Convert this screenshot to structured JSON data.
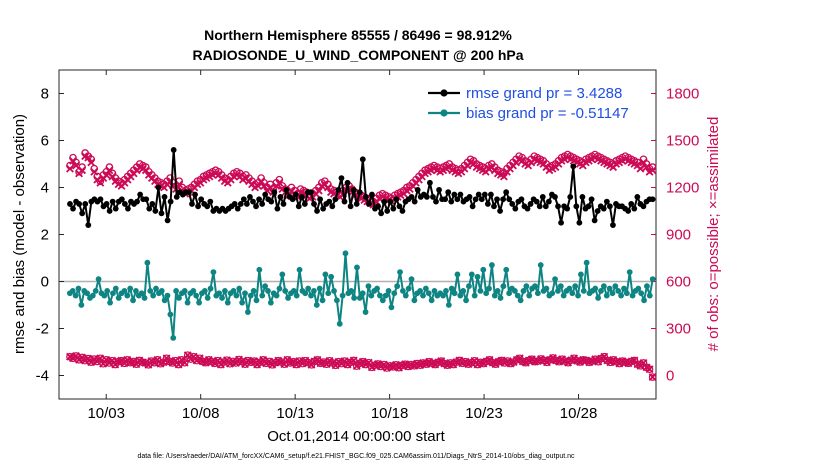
{
  "colors": {
    "rmse": "#000000",
    "bias": "#0e8583",
    "obs": "#cc0a55",
    "legend_text": "#1f4fe0",
    "zero_line": "#b0b0b0"
  },
  "chart_data": {
    "type": "line",
    "title_line1": "Northern Hemisphere 85555 / 86496 = 98.912%",
    "title_line2": "RADIOSONDE_U_WIND_COMPONENT @ 200 hPa",
    "xlabel": "Oct.01,2014 00:00:00 start",
    "ylabel_left": "rmse and bias (model - observation)",
    "ylabel_right": "# of obs: o=possible; ×=assimilated",
    "footer": "data file: /Users/raeder/DAI/ATM_forcXX/CAM6_setup/f.e21.FHIST_BGC.f09_025.CAM6assim.011/Diags_NtrS_2014-10/obs_diag_output.nc",
    "xlim": [
      0.5,
      32.1
    ],
    "ylim_left": [
      -5,
      9
    ],
    "ylim_right": [
      -150,
      1950
    ],
    "ticks_left": [
      -4,
      -2,
      0,
      2,
      4,
      6,
      8
    ],
    "ticks_right": [
      0,
      300,
      600,
      900,
      1200,
      1500,
      1800
    ],
    "ticks_x": [
      {
        "day": 3,
        "label": "10/03"
      },
      {
        "day": 8,
        "label": "10/08"
      },
      {
        "day": 13,
        "label": "10/13"
      },
      {
        "day": 18,
        "label": "10/18"
      },
      {
        "day": 23,
        "label": "10/23"
      },
      {
        "day": 28,
        "label": "10/28"
      }
    ],
    "legend": [
      {
        "key": "rmse",
        "label": "rmse grand pr = 3.4288"
      },
      {
        "key": "bias",
        "label": "bias grand pr = -0.51147"
      }
    ],
    "series_rmse": {
      "name": "rmse",
      "values": [
        3.3,
        3.1,
        3.4,
        3.3,
        2.9,
        3.3,
        2.4,
        3.4,
        3.5,
        3.4,
        3.5,
        3.2,
        3.3,
        3.0,
        3.4,
        3.1,
        3.4,
        3.5,
        3.3,
        3.1,
        3.4,
        3.3,
        3.4,
        3.7,
        3.5,
        3.5,
        3.1,
        3.3,
        3.0,
        4.0,
        2.9,
        3.6,
        2.6,
        3.4,
        5.6,
        3.6,
        3.8,
        3.7,
        3.8,
        3.8,
        3.3,
        3.7,
        3.2,
        3.5,
        3.3,
        3.2,
        3.4,
        3.0,
        3.1,
        3.0,
        3.1,
        3.0,
        3.1,
        3.2,
        3.3,
        3.1,
        3.3,
        3.5,
        3.3,
        3.6,
        3.4,
        3.2,
        3.5,
        3.3,
        3.7,
        3.5,
        3.4,
        3.8,
        3.1,
        3.6,
        3.3,
        3.9,
        3.6,
        3.5,
        3.7,
        3.2,
        3.6,
        3.3,
        3.8,
        3.8,
        3.3,
        3.0,
        3.5,
        3.1,
        3.3,
        3.4,
        3.2,
        3.5,
        3.9,
        4.4,
        3.4,
        4.2,
        3.2,
        3.9,
        3.3,
        3.8,
        5.2,
        3.6,
        3.3,
        3.7,
        3.1,
        3.2,
        2.9,
        3.4,
        3.0,
        3.4,
        3.1,
        3.5,
        3.2,
        3.0,
        3.4,
        3.5,
        3.6,
        3.4,
        3.9,
        3.6,
        3.7,
        3.6,
        4.2,
        3.6,
        3.4,
        3.9,
        3.5,
        3.5,
        3.8,
        3.4,
        3.7,
        3.5,
        3.7,
        3.4,
        3.5,
        3.6,
        3.2,
        3.5,
        3.7,
        3.5,
        3.7,
        3.3,
        3.7,
        3.2,
        3.5,
        3.0,
        3.5,
        3.8,
        3.5,
        3.3,
        3.1,
        3.4,
        3.5,
        3.2,
        3.1,
        3.3,
        3.5,
        3.4,
        3.2,
        3.6,
        3.2,
        3.4,
        3.7,
        3.6,
        3.2,
        2.5,
        3.2,
        3.1,
        3.6,
        4.9,
        3.2,
        2.5,
        3.6,
        3.1,
        3.2,
        3.5,
        2.6,
        3.0,
        3.2,
        3.1,
        3.4,
        3.2,
        2.4,
        3.3,
        3.2,
        3.2,
        3.1,
        3.0,
        3.3,
        3.1,
        3.6,
        3.3,
        3.2,
        3.4,
        3.5,
        3.5
      ]
    },
    "series_bias": {
      "name": "bias",
      "values": [
        -0.5,
        -0.4,
        -0.6,
        -0.3,
        -1.0,
        -0.4,
        -0.5,
        -0.7,
        -0.6,
        -0.4,
        0.1,
        -0.5,
        -0.6,
        -0.4,
        -0.9,
        -0.5,
        -0.3,
        -0.7,
        -0.5,
        -0.4,
        -0.6,
        -0.3,
        -0.8,
        -0.4,
        -0.6,
        -0.5,
        -0.7,
        0.8,
        -0.4,
        -0.6,
        -0.3,
        -0.5,
        -0.4,
        -0.8,
        -0.6,
        -1.4,
        -2.4,
        -0.4,
        -0.7,
        -0.5,
        -0.4,
        -0.9,
        -0.5,
        -0.4,
        -0.6,
        -0.9,
        -0.5,
        -0.4,
        -0.7,
        -0.3,
        0.4,
        -0.6,
        -0.5,
        -0.7,
        -0.4,
        -0.9,
        -0.5,
        -0.4,
        -0.6,
        -0.3,
        -0.9,
        -0.5,
        -1.3,
        -0.6,
        -0.4,
        -0.8,
        0.5,
        -0.6,
        -0.2,
        -0.4,
        -0.9,
        -0.5,
        -0.6,
        -0.3,
        0.3,
        -0.4,
        -0.7,
        -0.5,
        -0.4,
        -0.6,
        0.5,
        -0.4,
        -0.5,
        -0.3,
        -0.6,
        -0.4,
        -1.0,
        -0.3,
        -0.8,
        0.3,
        -0.5,
        0.2,
        -0.4,
        -0.8,
        -1.8,
        -0.6,
        1.2,
        -0.5,
        -0.4,
        -0.7,
        0.6,
        -0.7,
        -0.5,
        -1.3,
        -0.2,
        -0.6,
        -0.4,
        -0.3,
        -0.6,
        -0.8,
        -0.6,
        -0.4,
        -1.1,
        -0.5,
        -0.2,
        0.4,
        -0.4,
        -0.6,
        -0.3,
        0.1,
        -0.8,
        -0.5,
        -0.4,
        -0.6,
        -0.3,
        -0.5,
        -0.8,
        -0.4,
        -0.6,
        -0.5,
        -0.6,
        -0.4,
        -1.0,
        -0.3,
        -0.5,
        0.3,
        -0.6,
        -0.4,
        -0.8,
        -0.2,
        0.3,
        -0.6,
        0.2,
        -0.4,
        0.5,
        -0.5,
        -0.3,
        0.7,
        -0.6,
        -0.4,
        -0.7,
        -0.2,
        0.5,
        -0.5,
        -0.3,
        -0.4,
        -0.6,
        -0.8,
        -0.4,
        -0.2,
        -0.6,
        -0.3,
        -0.2,
        -0.5,
        0.7,
        -0.4,
        -0.3,
        -0.6,
        -0.5,
        0.1,
        -0.4,
        -0.2,
        -0.6,
        -0.4,
        -0.3,
        -0.5,
        -0.2,
        -0.6,
        0.3,
        -0.4,
        0.8,
        -0.5,
        -0.4,
        -0.3,
        -0.7,
        -0.4,
        -0.2,
        -0.6,
        -0.3,
        -0.5,
        -0.2,
        -0.4,
        -0.6,
        -0.3,
        -0.5,
        0.4,
        -0.6,
        -0.4,
        -0.3,
        -0.5,
        -0.8,
        -0.2,
        -0.6,
        0.1
      ]
    },
    "series_obs_possible": {
      "name": "possible",
      "values": [
        1340,
        1390,
        1360,
        1300,
        1330,
        1420,
        1400,
        1380,
        1320,
        1270,
        1240,
        1280,
        1300,
        1330,
        1290,
        1260,
        1240,
        1230,
        1250,
        1270,
        1290,
        1310,
        1330,
        1350,
        1340,
        1330,
        1300,
        1280,
        1260,
        1240,
        1230,
        1220,
        1240,
        1260,
        1230,
        1210,
        1240,
        1200,
        1180,
        1190,
        1200,
        1220,
        1240,
        1250,
        1270,
        1280,
        1290,
        1300,
        1310,
        1300,
        1280,
        1260,
        1250,
        1270,
        1290,
        1300,
        1290,
        1270,
        1280,
        1260,
        1240,
        1220,
        1230,
        1260,
        1230,
        1200,
        1220,
        1190,
        1230,
        1250,
        1210,
        1190,
        1170,
        1200,
        1180,
        1160,
        1190,
        1180,
        1170,
        1150,
        1160,
        1180,
        1200,
        1230,
        1240,
        1220,
        1190,
        1180,
        1170,
        1160,
        1180,
        1200,
        1210,
        1190,
        1170,
        1160,
        1150,
        1140,
        1130,
        1120,
        1110,
        1130,
        1150,
        1160,
        1150,
        1140,
        1130,
        1150,
        1160,
        1170,
        1180,
        1200,
        1210,
        1230,
        1250,
        1270,
        1290,
        1310,
        1320,
        1330,
        1340,
        1330,
        1320,
        1330,
        1340,
        1350,
        1330,
        1320,
        1310,
        1320,
        1340,
        1360,
        1380,
        1370,
        1350,
        1340,
        1330,
        1320,
        1340,
        1350,
        1330,
        1310,
        1300,
        1290,
        1320,
        1340,
        1360,
        1380,
        1400,
        1390,
        1370,
        1360,
        1380,
        1400,
        1390,
        1380,
        1370,
        1350,
        1330,
        1340,
        1350,
        1370,
        1390,
        1400,
        1410,
        1400,
        1390,
        1380,
        1370,
        1360,
        1380,
        1390,
        1400,
        1410,
        1400,
        1390,
        1380,
        1370,
        1360,
        1350,
        1370,
        1380,
        1390,
        1400,
        1390,
        1380,
        1370,
        1360,
        1340,
        1380,
        1350,
        1320,
        1330
      ]
    },
    "series_obs_assimilated": {
      "name": "assimilated",
      "values": [
        1320,
        1370,
        1340,
        1290,
        1310,
        1400,
        1390,
        1360,
        1300,
        1250,
        1230,
        1260,
        1280,
        1310,
        1270,
        1240,
        1220,
        1210,
        1230,
        1250,
        1270,
        1290,
        1310,
        1330,
        1320,
        1310,
        1280,
        1260,
        1240,
        1220,
        1210,
        1200,
        1220,
        1240,
        1210,
        1190,
        1220,
        1180,
        1160,
        1170,
        1180,
        1200,
        1220,
        1230,
        1250,
        1260,
        1270,
        1280,
        1290,
        1280,
        1260,
        1240,
        1230,
        1250,
        1270,
        1280,
        1270,
        1250,
        1260,
        1240,
        1220,
        1200,
        1210,
        1240,
        1210,
        1180,
        1200,
        1170,
        1210,
        1230,
        1190,
        1170,
        1150,
        1180,
        1160,
        1140,
        1170,
        1160,
        1150,
        1130,
        1140,
        1160,
        1180,
        1210,
        1220,
        1200,
        1170,
        1160,
        1150,
        1140,
        1160,
        1180,
        1190,
        1170,
        1150,
        1140,
        1130,
        1120,
        1110,
        1100,
        1090,
        1110,
        1130,
        1140,
        1130,
        1120,
        1110,
        1130,
        1140,
        1150,
        1160,
        1180,
        1190,
        1210,
        1230,
        1250,
        1270,
        1290,
        1300,
        1310,
        1320,
        1310,
        1300,
        1310,
        1320,
        1330,
        1310,
        1300,
        1290,
        1300,
        1320,
        1340,
        1360,
        1350,
        1330,
        1320,
        1310,
        1300,
        1320,
        1330,
        1310,
        1290,
        1280,
        1270,
        1300,
        1320,
        1340,
        1360,
        1380,
        1370,
        1350,
        1340,
        1360,
        1380,
        1370,
        1360,
        1350,
        1330,
        1310,
        1320,
        1330,
        1350,
        1370,
        1380,
        1390,
        1380,
        1370,
        1360,
        1350,
        1340,
        1360,
        1370,
        1380,
        1390,
        1380,
        1370,
        1360,
        1350,
        1340,
        1330,
        1350,
        1360,
        1370,
        1380,
        1370,
        1360,
        1350,
        1340,
        1320,
        1360,
        1330,
        1300,
        1310
      ]
    },
    "series_obs_lower": {
      "name": "assimilated (rmse/bias subset)",
      "values": [
        120,
        110,
        125,
        100,
        115,
        95,
        108,
        85,
        105,
        90,
        110,
        75,
        100,
        80,
        95,
        70,
        88,
        95,
        78,
        100,
        82,
        90,
        72,
        96,
        85,
        80,
        68,
        92,
        82,
        100,
        75,
        85,
        110,
        90,
        80,
        95,
        70,
        100,
        82,
        130,
        105,
        120,
        95,
        110,
        90,
        82,
        100,
        88,
        78,
        95,
        70,
        86,
        98,
        75,
        90,
        80,
        102,
        88,
        72,
        95,
        84,
        92,
        70,
        85,
        100,
        78,
        90,
        68,
        82,
        95,
        86,
        72,
        100,
        80,
        88,
        70,
        92,
        76,
        95,
        82,
        68,
        90,
        100,
        78,
        86,
        72,
        94,
        80,
        65,
        88,
        76,
        92,
        70,
        84,
        96,
        60,
        78,
        88,
        70,
        82,
        52,
        66,
        74,
        58,
        70,
        48,
        62,
        55,
        68,
        50,
        64,
        72,
        58,
        70,
        62,
        76,
        66,
        80,
        72,
        88,
        78,
        70,
        84,
        92,
        76,
        66,
        80,
        70,
        86,
        96,
        78,
        88,
        72,
        82,
        94,
        70,
        84,
        76,
        90,
        100,
        82,
        72,
        88,
        96,
        80,
        92,
        76,
        86,
        100,
        110,
        90,
        82,
        96,
        104,
        88,
        92,
        106,
        96,
        84,
        100,
        112,
        96,
        88,
        104,
        92,
        82,
        98,
        110,
        94,
        86,
        100,
        96,
        84,
        92,
        104,
        88,
        108,
        120,
        96,
        84,
        100,
        88,
        76,
        92,
        84,
        78,
        90,
        96,
        72,
        62,
        80,
        52,
        40,
        -10
      ]
    }
  }
}
